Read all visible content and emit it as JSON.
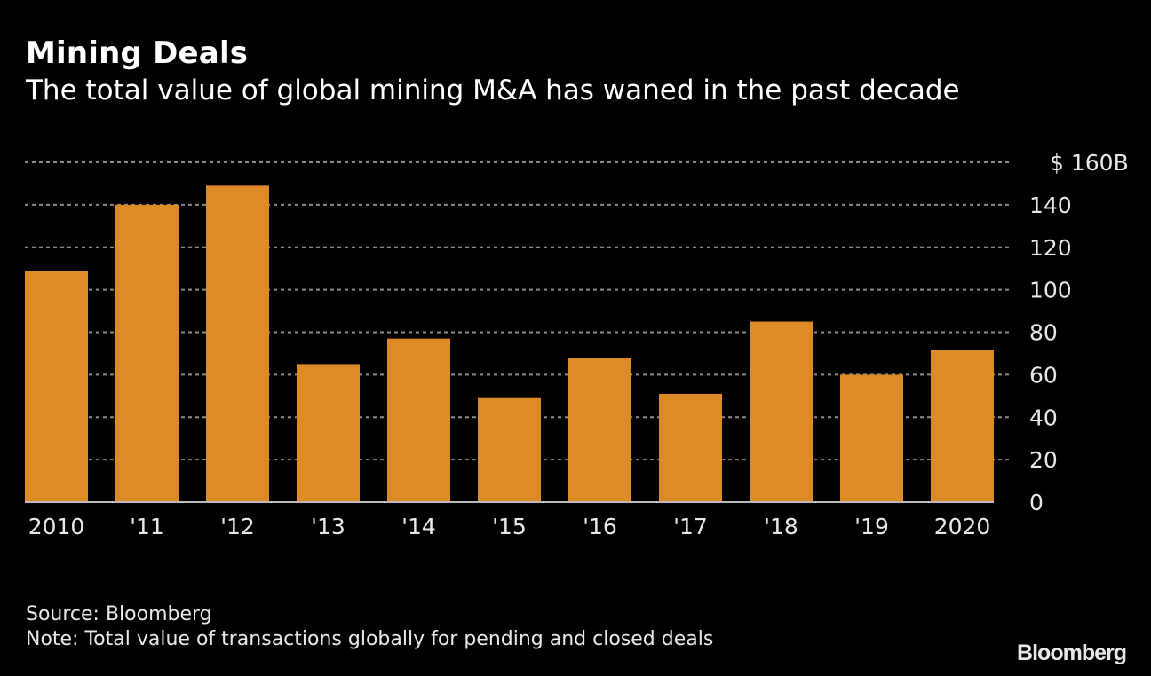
{
  "header": {
    "title": "Mining Deals",
    "subtitle": "The total value of global mining M&A has waned in the past decade"
  },
  "footer": {
    "source": "Source: Bloomberg",
    "note": "Note: Total value of transactions globally for pending and closed deals",
    "logo": "Bloomberg"
  },
  "colors": {
    "bar": "#dd8a27",
    "background": "#000000",
    "grid": "#8a8a8a",
    "text": "#e8e8e8"
  },
  "chart_data": {
    "type": "bar",
    "title": "Mining Deals",
    "subtitle": "The total value of global mining M&A has waned in the past decade",
    "xlabel": "",
    "ylabel": "",
    "categories": [
      "2010",
      "'11",
      "'12",
      "'13",
      "'14",
      "'15",
      "'16",
      "'17",
      "'18",
      "'19",
      "2020"
    ],
    "values": [
      109,
      140,
      149,
      65,
      77,
      49,
      68,
      51,
      85,
      60,
      71.5
    ],
    "ylim": [
      0,
      160
    ],
    "yticks": [
      0,
      20,
      40,
      60,
      80,
      100,
      120,
      140,
      160
    ],
    "ytick_labels": [
      "0",
      "20",
      "40",
      "60",
      "80",
      "100",
      "120",
      "140",
      "$ 160B"
    ],
    "y_axis_side": "right",
    "grid": true,
    "units": "billions USD"
  }
}
